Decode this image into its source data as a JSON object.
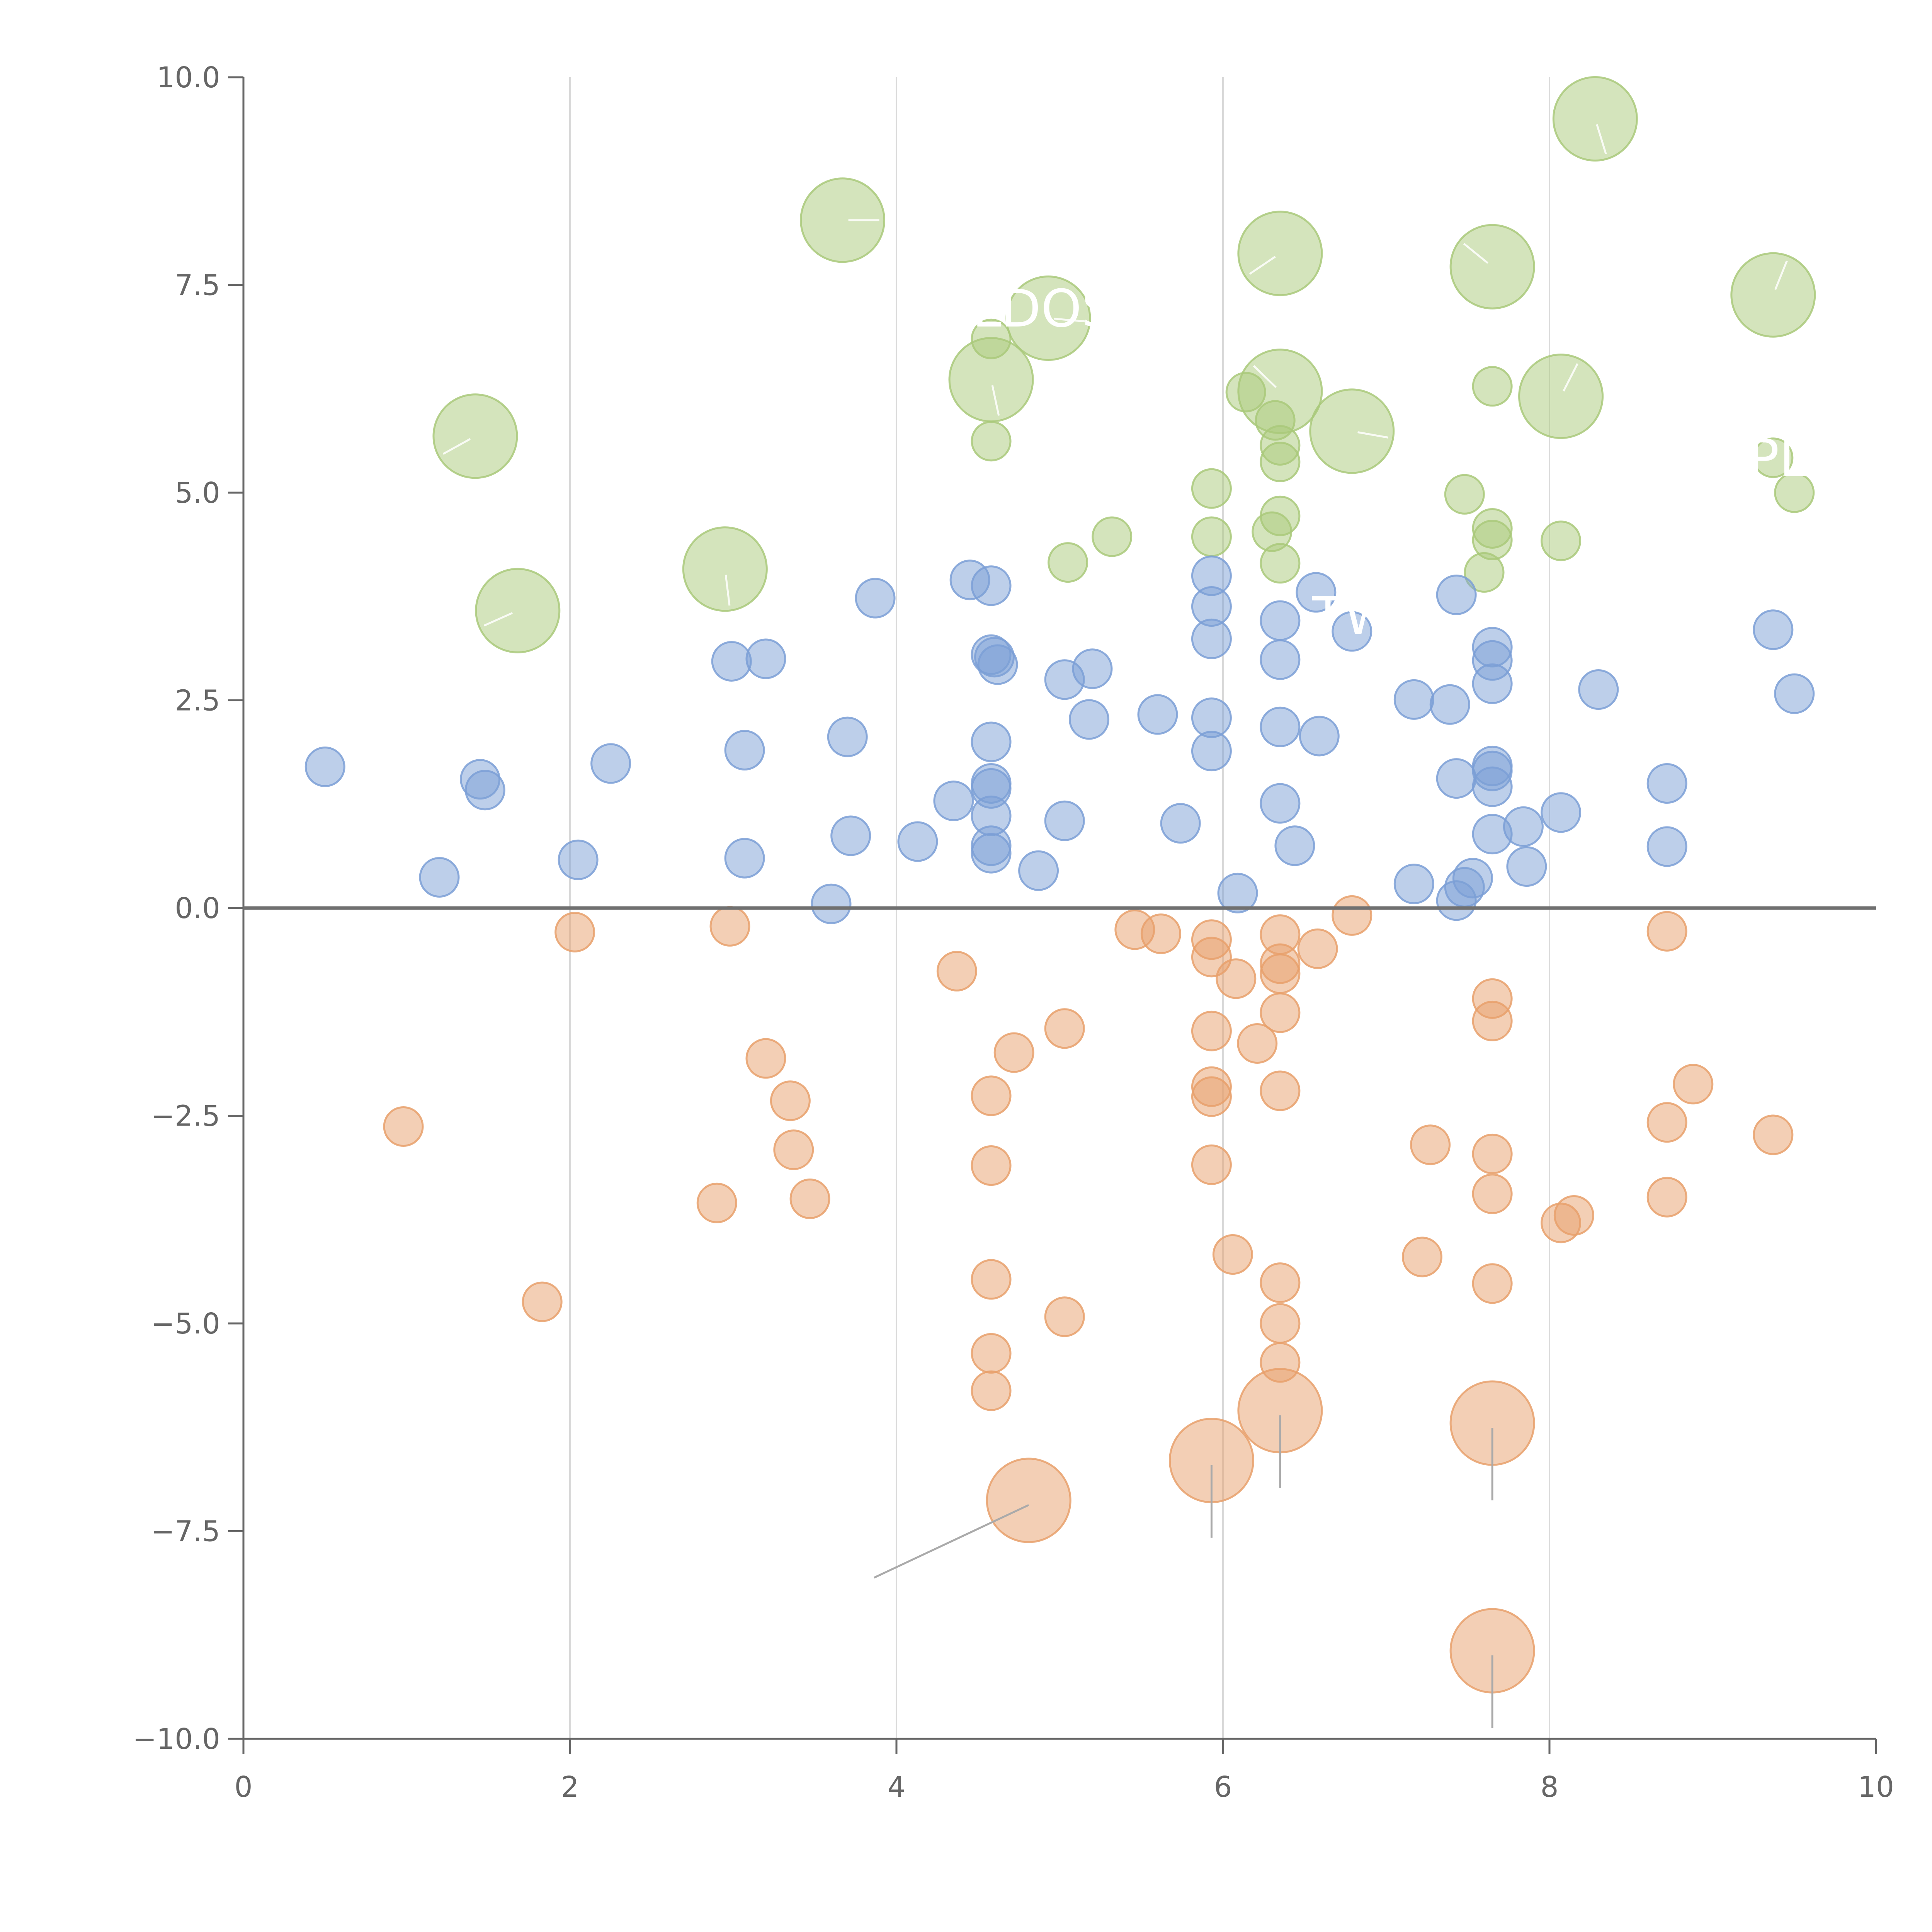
{
  "chart_data": {
    "type": "scatter",
    "title": "",
    "xlabel": "",
    "ylabel": "",
    "xlim": [
      0,
      10
    ],
    "ylim": [
      -10,
      10
    ],
    "x_ticks": [
      0,
      2,
      4,
      6,
      8,
      10
    ],
    "x_tick_labels": [
      "0",
      "2",
      "4",
      "6",
      "8",
      "10"
    ],
    "y_ticks": [
      -10,
      -7.5,
      -5,
      -2.5,
      0,
      2.5,
      5,
      7.5,
      10
    ],
    "y_tick_labels": [
      "−10.0",
      "−7.5",
      "−5.0",
      "−2.5",
      "0.0",
      "2.5",
      "5.0",
      "7.5",
      "10.0"
    ],
    "vertical_gridlines_at": [
      2,
      4,
      6,
      8
    ],
    "zero_line": true,
    "colors": {
      "blue": "#7b9fd6",
      "orange": "#e8a06b",
      "green": "#a9c97a",
      "grid": "#d9d9d9",
      "axis": "#666666",
      "zero_line": "#707070",
      "leader_line": "#aaaaaa"
    },
    "labels": [
      {
        "text": "LDOS",
        "x": 4.9,
        "y": 7.0
      },
      {
        "text": "TW",
        "x": 6.8,
        "y": 3.3
      },
      {
        "text": "PL",
        "x": 9.4,
        "y": 5.2
      }
    ],
    "series": [
      {
        "name": "green",
        "color": "#a9c97a",
        "points": [
          [
            3.67,
            8.28,
            3
          ],
          [
            8.28,
            9.5,
            3
          ],
          [
            6.35,
            7.88,
            3
          ],
          [
            7.65,
            7.72,
            3
          ],
          [
            9.37,
            7.38,
            3
          ],
          [
            4.93,
            7.1,
            3
          ],
          [
            4.58,
            6.36,
            3
          ],
          [
            1.42,
            5.68,
            3
          ],
          [
            6.35,
            6.22,
            3
          ],
          [
            8.07,
            6.16,
            3
          ],
          [
            6.79,
            5.74,
            3
          ],
          [
            2.95,
            4.08,
            3
          ],
          [
            1.68,
            3.58,
            3
          ],
          [
            4.58,
            6.85,
            1
          ],
          [
            4.58,
            5.62,
            1
          ],
          [
            6.14,
            6.21,
            1
          ],
          [
            6.32,
            5.87,
            1
          ],
          [
            6.35,
            5.57,
            1
          ],
          [
            6.35,
            5.37,
            1
          ],
          [
            7.65,
            6.28,
            1
          ],
          [
            5.93,
            5.05,
            1
          ],
          [
            5.93,
            4.47,
            1
          ],
          [
            6.35,
            4.72,
            1
          ],
          [
            6.3,
            4.53,
            1
          ],
          [
            6.35,
            4.15,
            1
          ],
          [
            5.05,
            4.16,
            1
          ],
          [
            5.32,
            4.47,
            1
          ],
          [
            7.48,
            4.98,
            1
          ],
          [
            7.65,
            4.57,
            1
          ],
          [
            7.65,
            4.43,
            1
          ],
          [
            7.6,
            4.04,
            1
          ],
          [
            8.07,
            4.42,
            1
          ],
          [
            9.37,
            5.42,
            1
          ],
          [
            9.5,
            5.0,
            1
          ]
        ]
      },
      {
        "name": "blue",
        "color": "#7b9fd6",
        "points": [
          [
            0.5,
            1.7,
            1
          ],
          [
            1.2,
            0.37,
            1
          ],
          [
            1.45,
            1.55,
            1
          ],
          [
            1.48,
            1.42,
            1
          ],
          [
            2.05,
            0.58,
            1
          ],
          [
            2.25,
            1.74,
            1
          ],
          [
            2.99,
            2.97,
            1
          ],
          [
            3.2,
            3.0,
            1
          ],
          [
            3.07,
            1.9,
            1
          ],
          [
            3.07,
            0.6,
            1
          ],
          [
            3.6,
            0.05,
            1
          ],
          [
            3.7,
            2.06,
            1
          ],
          [
            3.72,
            0.87,
            1
          ],
          [
            3.87,
            3.73,
            1
          ],
          [
            4.13,
            0.8,
            1
          ],
          [
            4.35,
            1.29,
            1
          ],
          [
            4.45,
            3.95,
            1
          ],
          [
            4.58,
            3.88,
            1
          ],
          [
            4.58,
            3.05,
            1
          ],
          [
            4.6,
            3.02,
            1
          ],
          [
            4.62,
            2.93,
            1
          ],
          [
            4.58,
            2.0,
            1
          ],
          [
            4.58,
            1.5,
            1
          ],
          [
            4.58,
            1.44,
            1
          ],
          [
            4.58,
            1.11,
            1
          ],
          [
            4.58,
            0.75,
            1
          ],
          [
            4.58,
            0.66,
            1
          ],
          [
            4.87,
            0.45,
            1
          ],
          [
            5.03,
            2.75,
            1
          ],
          [
            5.03,
            1.05,
            1
          ],
          [
            5.2,
            2.88,
            1
          ],
          [
            5.18,
            2.27,
            1
          ],
          [
            5.6,
            2.33,
            1
          ],
          [
            5.74,
            1.02,
            1
          ],
          [
            5.93,
            4.0,
            1
          ],
          [
            5.93,
            3.63,
            1
          ],
          [
            5.93,
            3.24,
            1
          ],
          [
            5.93,
            2.29,
            1
          ],
          [
            5.93,
            1.89,
            1
          ],
          [
            6.09,
            0.18,
            1
          ],
          [
            6.35,
            3.46,
            1
          ],
          [
            6.35,
            2.99,
            1
          ],
          [
            6.35,
            2.18,
            1
          ],
          [
            6.35,
            1.26,
            1
          ],
          [
            6.44,
            0.75,
            1
          ],
          [
            6.57,
            3.8,
            1
          ],
          [
            6.59,
            2.07,
            1
          ],
          [
            6.79,
            3.33,
            1
          ],
          [
            7.17,
            2.51,
            1
          ],
          [
            7.17,
            0.29,
            1
          ],
          [
            7.39,
            2.45,
            1
          ],
          [
            7.43,
            3.77,
            1
          ],
          [
            7.43,
            1.56,
            1
          ],
          [
            7.43,
            0.09,
            1
          ],
          [
            7.48,
            0.25,
            1
          ],
          [
            7.53,
            0.36,
            1
          ],
          [
            7.65,
            3.14,
            1
          ],
          [
            7.65,
            2.98,
            1
          ],
          [
            7.65,
            2.7,
            1
          ],
          [
            7.65,
            1.71,
            1
          ],
          [
            7.65,
            1.65,
            1
          ],
          [
            7.65,
            1.46,
            1
          ],
          [
            7.65,
            0.89,
            1
          ],
          [
            7.84,
            0.98,
            1
          ],
          [
            7.86,
            0.5,
            1
          ],
          [
            8.07,
            1.15,
            1
          ],
          [
            8.3,
            2.63,
            1
          ],
          [
            8.72,
            1.5,
            1
          ],
          [
            8.72,
            0.74,
            1
          ],
          [
            9.37,
            3.35,
            1
          ],
          [
            9.5,
            2.58,
            1
          ]
        ]
      },
      {
        "name": "orange",
        "color": "#e8a06b",
        "points": [
          [
            2.03,
            -0.29,
            1
          ],
          [
            2.98,
            -0.22,
            1
          ],
          [
            0.98,
            -2.63,
            1
          ],
          [
            1.83,
            -4.74,
            1
          ],
          [
            3.2,
            -1.81,
            1
          ],
          [
            3.35,
            -2.32,
            1
          ],
          [
            3.37,
            -2.91,
            1
          ],
          [
            3.47,
            -3.5,
            1
          ],
          [
            2.9,
            -3.55,
            1
          ],
          [
            4.37,
            -0.76,
            1
          ],
          [
            4.58,
            -2.26,
            1
          ],
          [
            4.58,
            -3.1,
            1
          ],
          [
            4.58,
            -4.47,
            1
          ],
          [
            4.58,
            -5.36,
            1
          ],
          [
            4.58,
            -5.81,
            1
          ],
          [
            4.72,
            -1.74,
            1
          ],
          [
            5.03,
            -1.45,
            1
          ],
          [
            5.03,
            -4.92,
            1
          ],
          [
            5.46,
            -0.26,
            1
          ],
          [
            5.62,
            -0.31,
            1
          ],
          [
            5.93,
            -0.38,
            1
          ],
          [
            5.93,
            -0.59,
            1
          ],
          [
            5.93,
            -1.48,
            1
          ],
          [
            5.93,
            -2.15,
            1
          ],
          [
            5.93,
            -2.27,
            1
          ],
          [
            5.93,
            -3.09,
            1
          ],
          [
            6.08,
            -0.85,
            1
          ],
          [
            6.06,
            -4.17,
            1
          ],
          [
            6.21,
            -1.63,
            1
          ],
          [
            6.35,
            -0.32,
            1
          ],
          [
            6.35,
            -0.67,
            1
          ],
          [
            6.35,
            -0.79,
            1
          ],
          [
            6.35,
            -1.26,
            1
          ],
          [
            6.35,
            -2.2,
            1
          ],
          [
            6.35,
            -4.51,
            1
          ],
          [
            6.35,
            -5.0,
            1
          ],
          [
            6.35,
            -5.47,
            1
          ],
          [
            6.58,
            -0.49,
            1
          ],
          [
            6.79,
            -0.09,
            1
          ],
          [
            7.22,
            -4.2,
            1
          ],
          [
            7.27,
            -2.85,
            1
          ],
          [
            7.65,
            -1.09,
            1
          ],
          [
            7.65,
            -1.36,
            1
          ],
          [
            7.65,
            -2.96,
            1
          ],
          [
            7.65,
            -3.44,
            1
          ],
          [
            7.65,
            -4.52,
            1
          ],
          [
            8.07,
            -3.79,
            1
          ],
          [
            8.15,
            -3.7,
            1
          ],
          [
            8.72,
            -0.28,
            1
          ],
          [
            8.72,
            -2.58,
            1
          ],
          [
            8.72,
            -3.48,
            1
          ],
          [
            8.88,
            -2.12,
            1
          ],
          [
            9.37,
            -2.73,
            1
          ],
          [
            4.81,
            -7.13,
            3
          ],
          [
            5.93,
            -6.65,
            3
          ],
          [
            6.35,
            -6.05,
            3
          ],
          [
            7.65,
            -6.2,
            3
          ],
          [
            7.65,
            -8.94,
            3
          ]
        ]
      }
    ]
  }
}
